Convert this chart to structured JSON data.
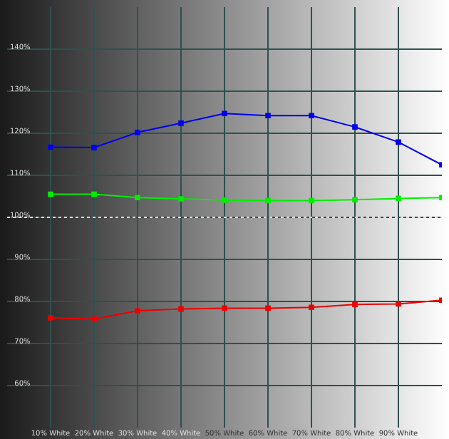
{
  "chart_data": {
    "type": "line",
    "x": [
      10,
      20,
      30,
      40,
      50,
      60,
      70,
      80,
      90,
      100
    ],
    "series": [
      {
        "color": "#0000ee",
        "values": [
          116.7,
          116.6,
          120.2,
          122.4,
          124.7,
          124.2,
          124.2,
          121.5,
          117.9,
          112.5
        ]
      },
      {
        "color": "#00ee00",
        "values": [
          105.5,
          105.5,
          104.7,
          104.4,
          104.1,
          104.0,
          104.0,
          104.2,
          104.5,
          104.7
        ]
      },
      {
        "color": "#ee0000",
        "values": [
          76.1,
          75.8,
          77.8,
          78.2,
          78.4,
          78.4,
          78.6,
          79.3,
          79.4,
          80.3
        ]
      }
    ],
    "xlim": [
      0,
      100
    ],
    "xticks": [
      {
        "value": 10,
        "label": "10% White"
      },
      {
        "value": 20,
        "label": "20% White"
      },
      {
        "value": 30,
        "label": "30% White"
      },
      {
        "value": 40,
        "label": "40% White"
      },
      {
        "value": 50,
        "label": "50% White"
      },
      {
        "value": 60,
        "label": "60% White"
      },
      {
        "value": 70,
        "label": "70% White"
      },
      {
        "value": 80,
        "label": "80% White"
      },
      {
        "value": 90,
        "label": "90% White"
      }
    ],
    "ylim": [
      50,
      150
    ],
    "yticks": [
      {
        "value": 60,
        "label": "60%"
      },
      {
        "value": 70,
        "label": "70%"
      },
      {
        "value": 80,
        "label": "80%"
      },
      {
        "value": 90,
        "label": "90%"
      },
      {
        "value": 100,
        "label": "100%"
      },
      {
        "value": 110,
        "label": "110%"
      },
      {
        "value": 120,
        "label": "120%"
      },
      {
        "value": 130,
        "label": "130%"
      },
      {
        "value": 140,
        "label": "140%"
      }
    ],
    "ref_lines": [
      {
        "axis": "y",
        "value": 100,
        "color": "#dddddd",
        "line_style": "dotted"
      }
    ],
    "grid": true,
    "marker": "square",
    "line_style": "solid",
    "legend": false
  }
}
